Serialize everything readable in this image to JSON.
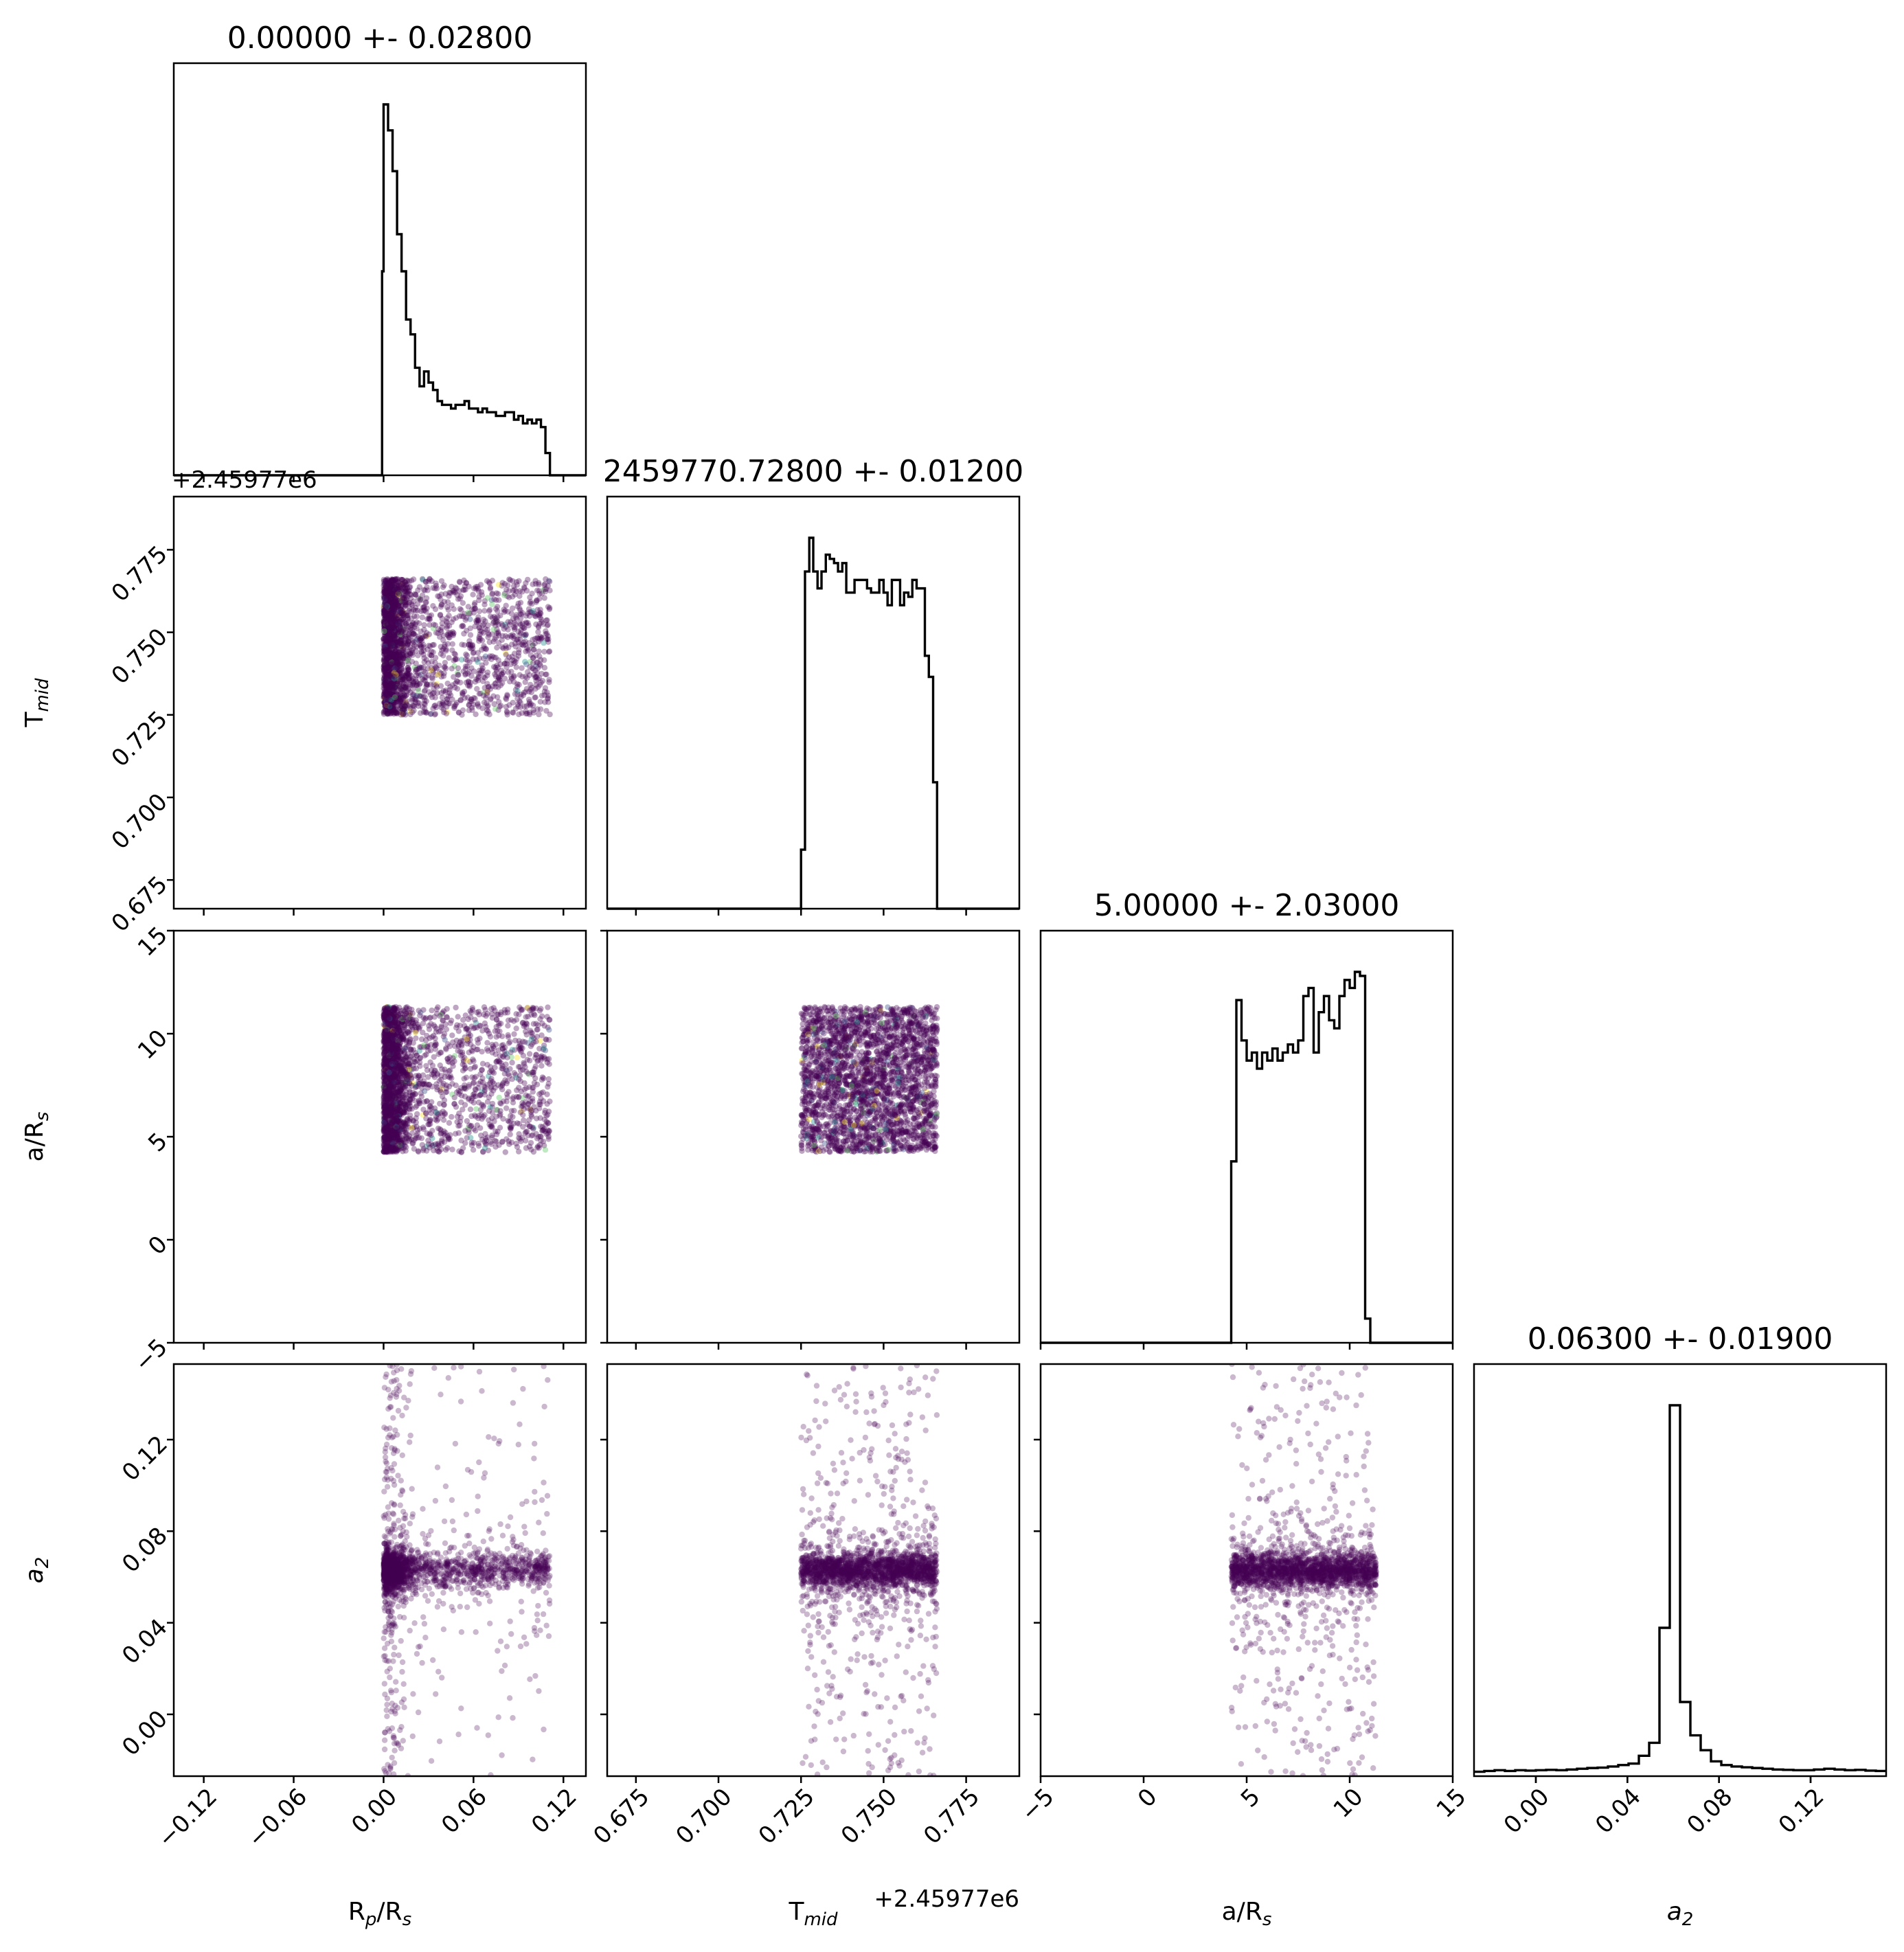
{
  "chart_data": {
    "type": "corner",
    "parameters": [
      {
        "key": "rp",
        "label_base": "R",
        "label_sub": "p",
        "label_tail": "/R",
        "label_sub2": "s",
        "title": "0.00000 +- 0.02800",
        "range": [
          -0.14,
          0.135
        ],
        "ticks": [
          -0.12,
          -0.06,
          0.0,
          0.06,
          0.12
        ],
        "tick_labels": [
          "−0.12",
          "−0.06",
          "0.00",
          "0.06",
          "0.12"
        ]
      },
      {
        "key": "tmid",
        "label_base": "T",
        "label_sub": "mid",
        "label_tail": "",
        "label_sub2": "",
        "title": "2459770.72800 +- 0.01200",
        "range": [
          0.6663,
          0.7911
        ],
        "ticks": [
          0.675,
          0.7,
          0.725,
          0.75,
          0.775
        ],
        "tick_labels": [
          "0.675",
          "0.700",
          "0.725",
          "0.750",
          "0.775"
        ],
        "offset_label": "+2.45977e6"
      },
      {
        "key": "ars",
        "label_base": "a/R",
        "label_sub": "s",
        "label_tail": "",
        "label_sub2": "",
        "title": "5.00000 +- 2.03000",
        "range": [
          -5.0,
          15.0
        ],
        "ticks": [
          -5,
          0,
          5,
          10,
          15
        ],
        "tick_labels": [
          "−5",
          "0",
          "5",
          "10",
          "15"
        ]
      },
      {
        "key": "a2",
        "label_base": "a",
        "label_sub": "2",
        "label_tail": "",
        "label_sub2": "",
        "label_italic": true,
        "title": "0.06300 +- 0.01900",
        "range": [
          -0.027,
          0.153
        ],
        "ticks": [
          0.0,
          0.04,
          0.08,
          0.12
        ],
        "tick_labels": [
          "0.00",
          "0.04",
          "0.08",
          "0.12"
        ]
      }
    ],
    "histograms": [
      {
        "param": "rp",
        "edges": [
          -0.14,
          -0.001,
          0.0,
          0.003,
          0.006,
          0.009,
          0.012,
          0.015,
          0.018,
          0.021,
          0.024,
          0.027,
          0.03,
          0.033,
          0.036,
          0.039,
          0.042,
          0.045,
          0.048,
          0.051,
          0.054,
          0.057,
          0.06,
          0.063,
          0.066,
          0.069,
          0.072,
          0.075,
          0.078,
          0.081,
          0.084,
          0.087,
          0.09,
          0.093,
          0.096,
          0.099,
          0.102,
          0.105,
          0.108,
          0.111,
          0.135
        ],
        "counts": [
          0,
          0.55,
          1.0,
          0.93,
          0.82,
          0.65,
          0.55,
          0.42,
          0.38,
          0.29,
          0.24,
          0.28,
          0.25,
          0.23,
          0.2,
          0.19,
          0.19,
          0.18,
          0.19,
          0.19,
          0.2,
          0.18,
          0.18,
          0.17,
          0.18,
          0.17,
          0.17,
          0.16,
          0.16,
          0.17,
          0.17,
          0.15,
          0.16,
          0.14,
          0.15,
          0.14,
          0.15,
          0.13,
          0.06,
          0
        ]
      },
      {
        "param": "tmid",
        "edges": [
          0.6663,
          0.725,
          0.7262,
          0.7275,
          0.7287,
          0.73,
          0.7312,
          0.7325,
          0.7337,
          0.735,
          0.7362,
          0.7375,
          0.7387,
          0.74,
          0.7412,
          0.7425,
          0.7437,
          0.745,
          0.7462,
          0.7475,
          0.7487,
          0.75,
          0.7512,
          0.7525,
          0.7537,
          0.755,
          0.7562,
          0.7575,
          0.7587,
          0.76,
          0.7612,
          0.7625,
          0.7637,
          0.765,
          0.7662,
          0.7911
        ],
        "counts": [
          0,
          0.14,
          0.8,
          0.88,
          0.8,
          0.76,
          0.8,
          0.84,
          0.83,
          0.82,
          0.8,
          0.82,
          0.75,
          0.75,
          0.78,
          0.78,
          0.78,
          0.76,
          0.75,
          0.75,
          0.78,
          0.75,
          0.72,
          0.78,
          0.78,
          0.72,
          0.75,
          0.74,
          0.78,
          0.76,
          0.76,
          0.6,
          0.55,
          0.3,
          0
        ]
      },
      {
        "param": "ars",
        "edges": [
          -5.0,
          4.25,
          4.5,
          4.75,
          5.0,
          5.25,
          5.5,
          5.75,
          6.0,
          6.25,
          6.5,
          6.75,
          7.0,
          7.25,
          7.5,
          7.75,
          8.0,
          8.25,
          8.5,
          8.75,
          9.0,
          9.25,
          9.5,
          9.75,
          10.0,
          10.25,
          10.5,
          10.75,
          11.0,
          11.25,
          11.5,
          15.0
        ],
        "counts": [
          0,
          0.45,
          0.85,
          0.75,
          0.7,
          0.72,
          0.68,
          0.72,
          0.7,
          0.73,
          0.7,
          0.72,
          0.74,
          0.72,
          0.75,
          0.86,
          0.88,
          0.72,
          0.82,
          0.86,
          0.8,
          0.78,
          0.86,
          0.9,
          0.88,
          0.92,
          0.91,
          0.06,
          0,
          0,
          0
        ]
      },
      {
        "param": "a2",
        "edges": [
          -0.027,
          -0.0225,
          -0.018,
          -0.0135,
          -0.009,
          -0.0045,
          0.0,
          0.0045,
          0.009,
          0.0135,
          0.018,
          0.0225,
          0.027,
          0.0315,
          0.036,
          0.0405,
          0.045,
          0.0495,
          0.054,
          0.0585,
          0.063,
          0.0675,
          0.072,
          0.0765,
          0.081,
          0.0855,
          0.09,
          0.0945,
          0.099,
          0.1035,
          0.108,
          0.1125,
          0.117,
          0.1215,
          0.126,
          0.1305,
          0.135,
          0.1395,
          0.144,
          0.1485,
          0.153
        ],
        "counts": [
          0.012,
          0.014,
          0.016,
          0.014,
          0.016,
          0.015,
          0.016,
          0.017,
          0.016,
          0.018,
          0.02,
          0.022,
          0.023,
          0.026,
          0.03,
          0.034,
          0.055,
          0.09,
          0.4,
          1.0,
          0.2,
          0.11,
          0.07,
          0.04,
          0.03,
          0.026,
          0.024,
          0.022,
          0.02,
          0.018,
          0.017,
          0.016,
          0.016,
          0.018,
          0.02,
          0.018,
          0.016,
          0.017,
          0.015,
          0.014
        ]
      }
    ],
    "scatter_color": "#440154",
    "accent_colors": [
      "#440154",
      "#3b528b",
      "#21918c",
      "#5ec962",
      "#fde725"
    ]
  }
}
